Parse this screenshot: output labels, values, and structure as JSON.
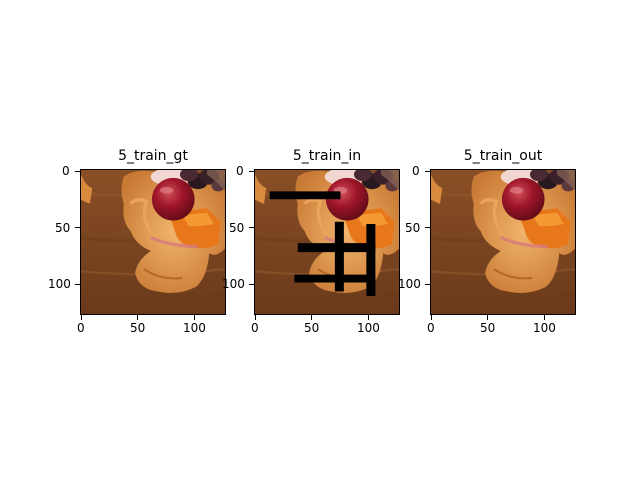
{
  "figure": {
    "panels": [
      {
        "title": "5_train_gt",
        "image": "food-photo-tart-cherry",
        "masked": false,
        "xticks": [
          "0",
          "50",
          "100"
        ],
        "yticks": [
          "0",
          "50",
          "100"
        ]
      },
      {
        "title": "5_train_in",
        "image": "food-photo-tart-cherry-with-black-mask",
        "masked": true,
        "xticks": [
          "0",
          "50",
          "100"
        ],
        "yticks": [
          "0",
          "50",
          "100"
        ]
      },
      {
        "title": "5_train_out",
        "image": "food-photo-tart-cherry-inpainted",
        "masked": false,
        "xticks": [
          "0",
          "50",
          "100"
        ],
        "yticks": [
          "0",
          "50",
          "100"
        ]
      }
    ]
  }
}
